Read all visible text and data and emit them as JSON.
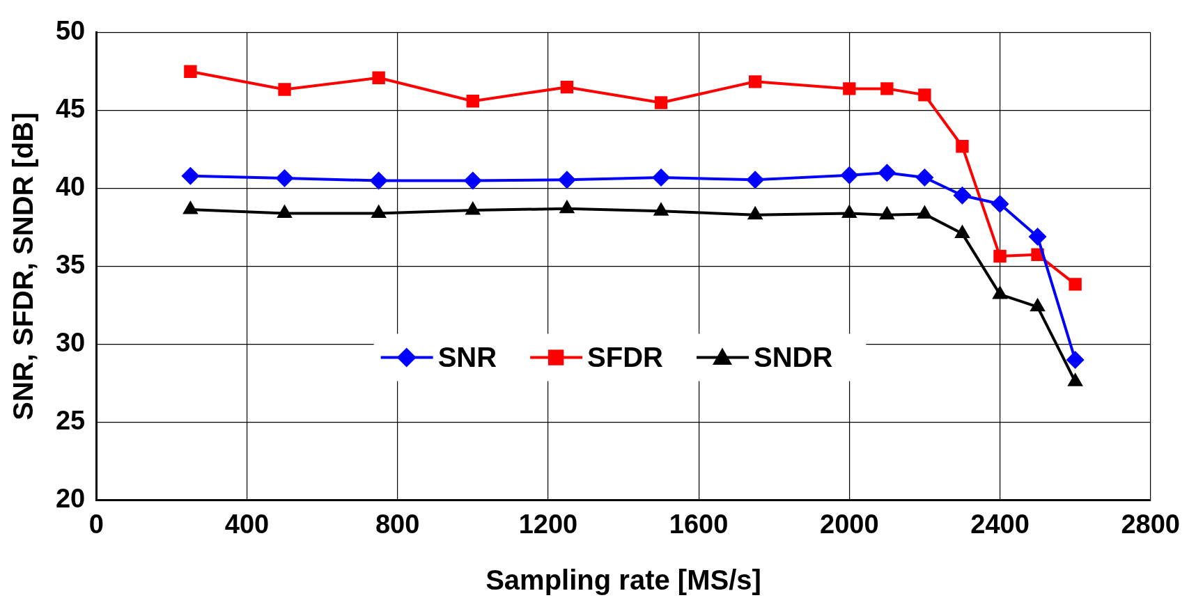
{
  "chart_data": {
    "type": "line",
    "xlabel": "Sampling rate [MS/s]",
    "ylabel": "SNR, SFDR, SNDR [dB]",
    "x": [
      250,
      500,
      750,
      1000,
      1250,
      1500,
      1750,
      2000,
      2100,
      2200,
      2300,
      2400,
      2500,
      2600
    ],
    "series": [
      {
        "name": "SNR",
        "color": "#0000ff",
        "marker": "diamond",
        "values": [
          40.8,
          40.65,
          40.5,
          40.5,
          40.55,
          40.7,
          40.55,
          40.85,
          41.0,
          40.7,
          39.55,
          39.0,
          36.9,
          29.0
        ]
      },
      {
        "name": "SFDR",
        "color": "#ff0000",
        "marker": "square",
        "values": [
          47.5,
          46.35,
          47.1,
          45.6,
          46.5,
          45.5,
          46.85,
          46.4,
          46.4,
          46.0,
          42.7,
          35.65,
          35.75,
          33.85
        ]
      },
      {
        "name": "SNDR",
        "color": "#000000",
        "marker": "triangle",
        "values": [
          38.65,
          38.4,
          38.4,
          38.6,
          38.7,
          38.55,
          38.3,
          38.4,
          38.3,
          38.35,
          37.1,
          33.2,
          32.4,
          27.6
        ]
      }
    ],
    "xlim": [
      0,
      2800
    ],
    "xticks": [
      0,
      400,
      800,
      1200,
      1600,
      2000,
      2400,
      2800
    ],
    "ylim": [
      20,
      50
    ],
    "yticks": [
      20,
      25,
      30,
      35,
      40,
      45,
      50
    ],
    "grid": true,
    "legend": "bottom",
    "line_style": "solid"
  }
}
